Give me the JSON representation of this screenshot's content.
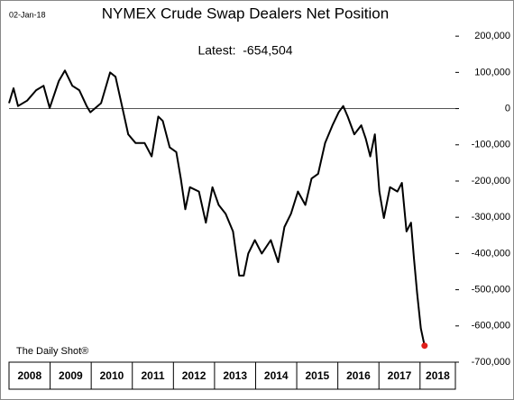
{
  "chart_data": {
    "type": "line",
    "title": "NYMEX Crude Swap Dealers Net Position",
    "date": "02-Jan-18",
    "annotation": "Latest:  -654,504",
    "source": "The Daily Shot®",
    "series": [
      {
        "color": "#000000",
        "x": [
          2008.0,
          2008.11,
          2008.22,
          2008.44,
          2008.66,
          2008.84,
          2008.99,
          2009.21,
          2009.36,
          2009.54,
          2009.71,
          2009.89,
          2009.98,
          2010.24,
          2010.46,
          2010.59,
          2010.75,
          2010.9,
          2011.08,
          2011.3,
          2011.47,
          2011.63,
          2011.74,
          2011.91,
          2012.07,
          2012.18,
          2012.29,
          2012.4,
          2012.62,
          2012.79,
          2012.95,
          2013.1,
          2013.27,
          2013.45,
          2013.6,
          2013.71,
          2013.82,
          2013.98,
          2014.15,
          2014.37,
          2014.55,
          2014.7,
          2014.86,
          2015.03,
          2015.21,
          2015.36,
          2015.52,
          2015.69,
          2015.87,
          2016.02,
          2016.13,
          2016.24,
          2016.4,
          2016.57,
          2016.68,
          2016.79,
          2016.9,
          2017.01,
          2017.12,
          2017.27,
          2017.45,
          2017.56,
          2017.67,
          2017.78,
          2017.85,
          2017.93,
          2018.02,
          2018.11
        ],
        "values": [
          15000,
          56000,
          7000,
          22000,
          51000,
          63000,
          2000,
          76000,
          105000,
          63000,
          51000,
          7000,
          -10000,
          15000,
          100000,
          88000,
          7000,
          -71000,
          -95000,
          -95000,
          -132000,
          -22000,
          -34000,
          -107000,
          -120000,
          -193000,
          -278000,
          -217000,
          -229000,
          -315000,
          -217000,
          -266000,
          -290000,
          -339000,
          -461000,
          -461000,
          -400000,
          -363000,
          -400000,
          -363000,
          -424000,
          -327000,
          -290000,
          -229000,
          -266000,
          -193000,
          -180000,
          -95000,
          -46000,
          -10000,
          7000,
          -22000,
          -71000,
          -46000,
          -83000,
          -132000,
          -71000,
          -229000,
          -302000,
          -217000,
          -229000,
          -205000,
          -339000,
          -315000,
          -412000,
          -510000,
          -607000,
          -654504
        ],
        "last_marker_color": "#e0201b"
      }
    ],
    "xlim": [
      2008,
      2018.86
    ],
    "xticks": [
      2008,
      2009,
      2010,
      2011,
      2012,
      2013,
      2014,
      2015,
      2016,
      2017,
      2018
    ],
    "ylim": [
      -700000,
      270000
    ],
    "yticks": [
      {
        "value": 200000,
        "label": "200,000"
      },
      {
        "value": 100000,
        "label": "100,000"
      },
      0,
      {
        "value": -100000,
        "label": "-100,000"
      },
      {
        "value": -200000,
        "label": "-200,000"
      },
      {
        "value": -300000,
        "label": "-300,000"
      },
      {
        "value": -400000,
        "label": "-400,000"
      },
      {
        "value": -500000,
        "label": "-500,000"
      },
      {
        "value": -600000,
        "label": "-600,000"
      },
      {
        "value": -700000,
        "label": "-700,000"
      }
    ],
    "reference_line": 0
  }
}
